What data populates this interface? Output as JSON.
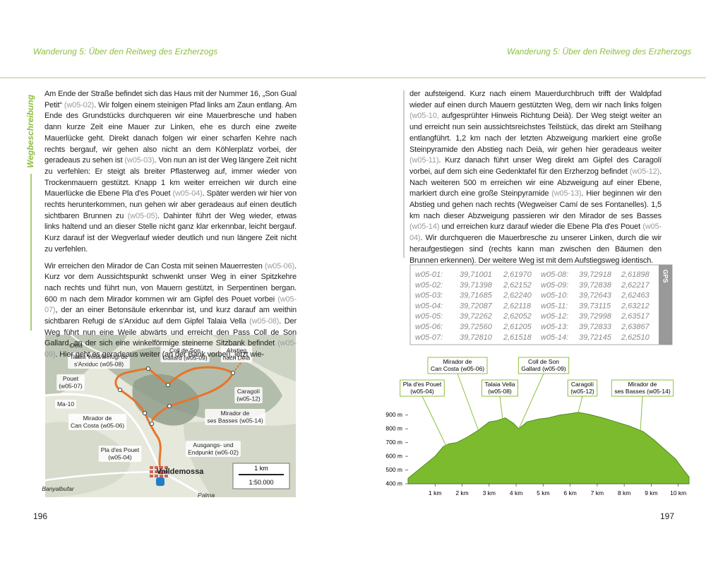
{
  "header": {
    "left": "Wanderung 5: Über den Reitweg des Erzherzogs",
    "right": "Wanderung 5: Über den Reitweg des Erzherzogs"
  },
  "left_page": {
    "side_label": "Wegbeschreibung",
    "paragraphs": [
      [
        "Am Ende der Straße befindet sich das Haus mit der Nummer 16, „Son Gual Petit“ ",
        "(w05-02)",
        ". Wir folgen einem steinigen Pfad links am Zaun entlang. Am Ende des Grundstücks durchqueren wir eine Mauerbresche und haben dann kurze Zeit eine Mauer zur Linken, ehe es durch eine zweite Mauerlücke geht. Direkt danach folgen wir einer scharfen Kehre nach rechts bergauf, wir gehen also nicht an dem Köhlerplatz vorbei, der geradeaus zu sehen ist ",
        "(w05-03)",
        ". Von nun an ist der Weg längere Zeit nicht zu verfehlen: Er steigt als breiter Pflasterweg auf, immer wieder von Trockenmauern gestützt. Knapp 1 km weiter erreichen wir durch eine Mauerlücke die Ebene Pla d'es Pouet ",
        "(w05-04)",
        ". Später werden wir hier von rechts herunterkommen, nun gehen wir aber geradeaus auf einen deutlich sichtbaren Brunnen zu ",
        "(w05-05)",
        ". Dahinter führt der Weg wieder, etwas links haltend und an dieser Stelle nicht ganz klar erkennbar, leicht bergauf. Kurz darauf ist der Wegverlauf wieder deutlich und nun längere Zeit nicht zu verfehlen."
      ],
      [
        "Wir erreichen den Mirador de Can Costa mit seinen Mauerresten ",
        "(w05-06)",
        ". Kurz vor dem Aussichtspunkt schwenkt unser Weg in einer Spitzkehre nach rechts und führt nun, von Mauern gestützt, in Serpentinen bergan. 600 m nach dem Mirador kommen wir am Gipfel des Pouet vorbei ",
        "(w05-07)",
        ", der an einer Betonsäule erkennbar ist, und kurz darauf am weithin sichtbaren Refugi de s'Arxiduc auf dem Gipfel Talaia Vella ",
        "(w05-08)",
        ". Der Weg führt nun eine Weile abwärts und erreicht den Pass Coll de Son Gallard, an der sich eine winkelförmige steinerne Sitzbank befindet ",
        "(w05-09)",
        ". Hier geht es geradeaus weiter (an der Bank vorbei), jetzt wie-"
      ]
    ],
    "page_number": "196"
  },
  "map": {
    "labels": [
      {
        "lines": [
          "Deià"
        ]
      },
      {
        "lines": [
          "Talaia Vella/Refugi de",
          "s'Arxiduc (w05-08)"
        ]
      },
      {
        "lines": [
          "Coll de Son",
          "Gallard (w05-09)"
        ]
      },
      {
        "lines": [
          "Abstieg",
          "nach Deià"
        ]
      },
      {
        "lines": [
          "Pouet",
          "(w05-07)"
        ]
      },
      {
        "lines": [
          "Caragolí",
          "(w05-12)"
        ]
      },
      {
        "lines": [
          "Ma-10"
        ]
      },
      {
        "lines": [
          "Mirador de",
          "ses Basses (w05-14)"
        ]
      },
      {
        "lines": [
          "Mirador de",
          "Can Costa (w05-06)"
        ]
      },
      {
        "lines": [
          "Pla d'es Pouet",
          "(w05-04)"
        ]
      },
      {
        "lines": [
          "Ausgangs- und",
          "Endpunkt (w05-02)"
        ]
      },
      {
        "lines": [
          "Valldemossa"
        ]
      },
      {
        "lines": [
          "Banyalbufar"
        ]
      },
      {
        "lines": [
          "Palma"
        ]
      }
    ],
    "scale_label": "1 km",
    "scale_ratio": "1:50.000"
  },
  "right_page": {
    "paragraphs": [
      [
        "der aufsteigend. Kurz nach einem Mauerdurchbruch trifft der Waldpfad wieder auf einen durch Mauern gestützten Weg, dem wir nach links folgen ",
        "(w05-10,",
        " aufgesprühter Hinweis Richtung Deià). Der Weg steigt weiter an und erreicht nun sein aussichtsreichstes Teilstück, das direkt am Steilhang entlangführt. 1,2 km nach der letzten Abzweigung markiert eine große Steinpyramide den Abstieg nach Deià, wir gehen hier geradeaus weiter ",
        "(w05-11)",
        ". Kurz danach führt unser Weg direkt am Gipfel des Caragolí vorbei, auf dem sich eine Gedenktafel für den Erzherzog befindet ",
        "(w05-12)",
        ". Nach weiteren 500 m erreichen wir eine Abzweigung auf einer Ebene, markiert durch eine große Steinpyramide ",
        "(w05-13)",
        ". Hier beginnen wir den Abstieg und gehen nach rechts (Wegweiser Camí de ses Fontanelles). 1,5 km nach dieser Abzweigung passieren wir den Mirador de ses Basses ",
        "(w05-14)",
        " und erreichen kurz darauf wieder die Ebene Pla d'es Pouet ",
        "(w05-04)",
        ". Wir durchqueren die Mauerbresche zu unserer Linken, durch die wir heraufgestiegen sind (rechts kann man zwischen den Bäumen den Brunnen erkennen). Der weitere Weg ist mit dem Aufstiegsweg identisch."
      ]
    ],
    "gps": {
      "label": "GPS",
      "rows": [
        [
          "w05-01:",
          "39,71001",
          "2,61970"
        ],
        [
          "w05-02:",
          "39,71398",
          "2,62152"
        ],
        [
          "w05-03:",
          "39,71685",
          "2,62240"
        ],
        [
          "w05-04:",
          "39,72087",
          "2,62118"
        ],
        [
          "w05-05:",
          "39,72262",
          "2,62052"
        ],
        [
          "w05-06:",
          "39,72560",
          "2,61205"
        ],
        [
          "w05-07:",
          "39,72810",
          "2,61518"
        ],
        [
          "w05-08:",
          "39,72918",
          "2,61898"
        ],
        [
          "w05-09:",
          "39,72838",
          "2,62217"
        ],
        [
          "w05-10:",
          "39,72643",
          "2,62463"
        ],
        [
          "w05-11:",
          "39,73115",
          "2,63212"
        ],
        [
          "w05-12:",
          "39,72998",
          "2,63517"
        ],
        [
          "w05-13:",
          "39,72833",
          "2,63867"
        ],
        [
          "w05-14:",
          "39,72145",
          "2,62510"
        ]
      ]
    },
    "page_number": "197"
  },
  "elevation_profile": {
    "type": "area",
    "color": "#7dbb2e",
    "xlim": [
      0,
      10.4
    ],
    "ylim": [
      400,
      950
    ],
    "xticks": [
      {
        "value": 1,
        "label": "1 km"
      },
      {
        "value": 2,
        "label": "2 km"
      },
      {
        "value": 3,
        "label": "3 km"
      },
      {
        "value": 4,
        "label": "4 km"
      },
      {
        "value": 5,
        "label": "5 km"
      },
      {
        "value": 6,
        "label": "6 km"
      },
      {
        "value": 7,
        "label": "7 km"
      },
      {
        "value": 8,
        "label": "8 km"
      },
      {
        "value": 9,
        "label": "9 km"
      },
      {
        "value": 10,
        "label": "10 km"
      }
    ],
    "yticks": [
      {
        "value": 400,
        "label": "400 m"
      },
      {
        "value": 500,
        "label": "500 m"
      },
      {
        "value": 600,
        "label": "600 m"
      },
      {
        "value": 700,
        "label": "700 m"
      },
      {
        "value": 800,
        "label": "800 m"
      },
      {
        "value": 900,
        "label": "900 m"
      }
    ],
    "x": [
      0,
      0.5,
      1,
      1.3,
      1.5,
      1.8,
      2.2,
      2.6,
      3.0,
      3.3,
      3.6,
      3.9,
      4.1,
      4.4,
      4.8,
      5.2,
      5.6,
      6.0,
      6.3,
      6.7,
      7.2,
      7.7,
      8.2,
      8.7,
      9.1,
      9.5,
      9.9,
      10.2,
      10.4
    ],
    "y": [
      440,
      520,
      600,
      670,
      690,
      700,
      740,
      790,
      850,
      860,
      880,
      840,
      800,
      850,
      870,
      880,
      900,
      910,
      920,
      905,
      880,
      850,
      820,
      780,
      720,
      650,
      580,
      500,
      450
    ],
    "annotations": [
      {
        "lines": [
          "Pla d'es Pouet",
          "(w05-04)"
        ],
        "x": 1.4
      },
      {
        "lines": [
          "Mirador de",
          "Can Costa (w05-06)"
        ],
        "x": 2.6
      },
      {
        "lines": [
          "Talaia Vella",
          "(w05-08)"
        ],
        "x": 3.5
      },
      {
        "lines": [
          "Coll de Son",
          "Gallard (w05-09)"
        ],
        "x": 4.1
      },
      {
        "lines": [
          "Caragolí",
          "(w05-12)"
        ],
        "x": 6.3
      },
      {
        "lines": [
          "Mirador de",
          "ses Basses (w05-14)"
        ],
        "x": 8.6
      }
    ]
  }
}
